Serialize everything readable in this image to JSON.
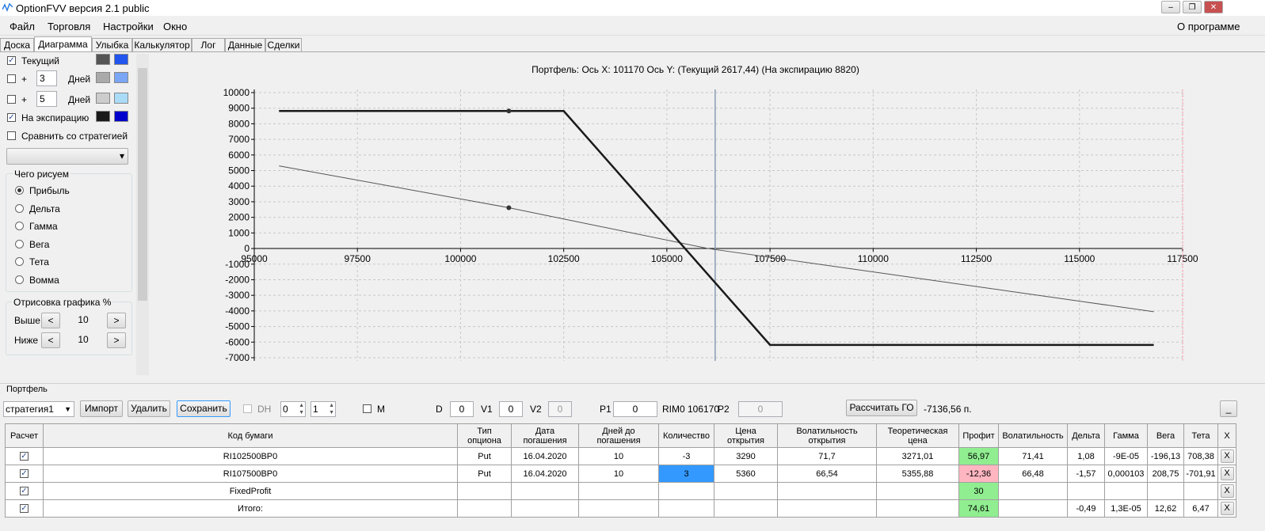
{
  "window": {
    "title": "OptionFVV версия 2.1 public"
  },
  "menu": {
    "items": [
      "Файл",
      "Торговля",
      "Настройки",
      "Окно"
    ],
    "about": "О программе"
  },
  "tabs": {
    "items": [
      "Доска",
      "Диаграмма",
      "Улыбка",
      "Калькулятор",
      "Лог",
      "Данные",
      "Сделки"
    ],
    "active": 1
  },
  "left_panel": {
    "series_options": [
      {
        "label": "Текущий",
        "checked": true,
        "colors": [
          "#555555",
          "#2255ee"
        ]
      },
      {
        "prefix": "+",
        "days": "3",
        "label": "Дней",
        "checked": false,
        "colors": [
          "#aaaaaa",
          "#7aa6f5"
        ]
      },
      {
        "prefix": "+",
        "days": "5",
        "label": "Дней",
        "checked": false,
        "colors": [
          "#cccccc",
          "#aadcf8"
        ]
      },
      {
        "label": "На экспирацию",
        "checked": true,
        "colors": [
          "#1a1a1a",
          "#0000cc"
        ]
      }
    ],
    "compare": {
      "label": "Сравнить со стратегией",
      "checked": false
    },
    "draw_group": {
      "title": "Чего рисуем",
      "options": [
        "Прибыль",
        "Дельта",
        "Гамма",
        "Вега",
        "Тета",
        "Вомма"
      ],
      "selected": 0
    },
    "range_group": {
      "title": "Отрисовка графика %",
      "rows": [
        {
          "label": "Выше",
          "value": "10"
        },
        {
          "label": "Ниже",
          "value": "10"
        }
      ],
      "buttons": [
        "<",
        ">"
      ]
    }
  },
  "chart_data": {
    "type": "line",
    "title": "Портфель:  Ось X:  101170  Ось Y:   (Текущий 2617,44)   (На экспирацию  8820)",
    "xlim": [
      95000,
      117500
    ],
    "xticks": [
      95000,
      97500,
      100000,
      102500,
      105000,
      107500,
      110000,
      112500,
      115000,
      117500
    ],
    "ylim": [
      -7000,
      10000
    ],
    "yticks": [
      -7000,
      -6000,
      -5000,
      -4000,
      -3000,
      -2000,
      -1000,
      0,
      1000,
      2000,
      3000,
      4000,
      5000,
      6000,
      7000,
      8000,
      9000,
      10000
    ],
    "grid": true,
    "series": [
      {
        "name": "Текущий",
        "color": "#555555",
        "width": 1,
        "x": [
          95600,
          101170,
          106000,
          116800
        ],
        "values": [
          5300,
          2617.44,
          0,
          -4050
        ]
      },
      {
        "name": "На экспирацию",
        "color": "#1a1a1a",
        "width": 2.5,
        "x": [
          95600,
          102500,
          107500,
          116800
        ],
        "values": [
          8820,
          8820,
          -6180,
          -6180
        ]
      }
    ],
    "markers": {
      "x": 101170,
      "values": [
        2617.44,
        8820
      ]
    },
    "price_line": 106170
  },
  "portfolio": {
    "label": "Портфель",
    "strategy": "стратегия1",
    "buttons": [
      "Импорт",
      "Удалить",
      "Сохранить"
    ],
    "dh": {
      "label": "DH",
      "checked": false,
      "spin1": "0",
      "spin2": "1"
    },
    "m": {
      "label": "M",
      "checked": false
    },
    "fields": [
      {
        "label": "D",
        "value": "0"
      },
      {
        "label": "V1",
        "value": "0"
      },
      {
        "label": "V2",
        "value": "0"
      },
      {
        "label": "P1",
        "value": "0"
      }
    ],
    "rim": "RIM0 106170",
    "p2": {
      "label": "P2",
      "value": "0"
    },
    "calc_button": "Рассчитать ГО",
    "go_value": "-7136,56 п.",
    "min_button": "_"
  },
  "table": {
    "header": [
      "Расчет",
      "Код бумаги",
      "Тип\nопциона",
      "Дата\nпогашения",
      "Дней до\nпогашения",
      "Количество",
      "Цена\nоткрытия",
      "Волатильность\nоткрытия",
      "Теоретическая\nцена",
      "Профит",
      "Волатильность",
      "Дельта",
      "Гамма",
      "Вега",
      "Тета",
      "X"
    ],
    "rows": [
      {
        "checked": true,
        "cells": [
          "RI102500BP0",
          "Put",
          "16.04.2020",
          "10",
          "-3",
          "3290",
          "71,7",
          "3271,01",
          "56,97",
          "71,41",
          "1,08",
          "-9E-05",
          "-196,13",
          "708,38",
          "X"
        ],
        "highlight": [
          {
            "col": 9,
            "color": "#90ee90"
          }
        ]
      },
      {
        "checked": true,
        "cells": [
          "RI107500BP0",
          "Put",
          "16.04.2020",
          "10",
          "3",
          "5360",
          "66,54",
          "5355,88",
          "-12,36",
          "66,48",
          "-1,57",
          "0,000103",
          "208,75",
          "-701,91",
          "X"
        ],
        "highlight": [
          {
            "col": 5,
            "color": "#3399ff"
          },
          {
            "col": 9,
            "color": "#ffb6c1"
          }
        ]
      },
      {
        "checked": true,
        "cells": [
          "FixedProfit",
          "",
          "",
          "",
          "",
          "",
          "",
          "",
          "30",
          "",
          "",
          "",
          "",
          "",
          "X"
        ],
        "highlight": [
          {
            "col": 9,
            "color": "#90ee90"
          }
        ]
      },
      {
        "checked": true,
        "cells": [
          "Итого:",
          "",
          "",
          "",
          "",
          "",
          "",
          "",
          "74,61",
          "",
          "-0,49",
          "1,3E-05",
          "12,62",
          "6,47",
          "X"
        ],
        "highlight": [
          {
            "col": 9,
            "color": "#90ee90"
          }
        ]
      }
    ]
  }
}
